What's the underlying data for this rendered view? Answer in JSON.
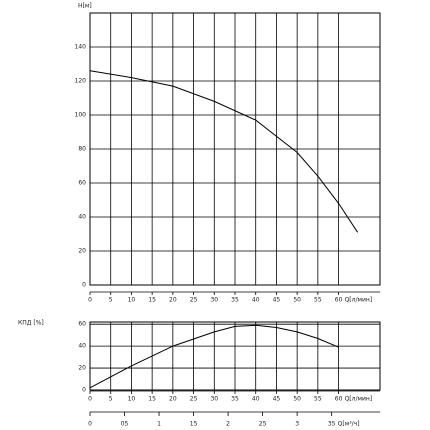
{
  "chart_data": [
    {
      "type": "line",
      "ylabel": "H[м]",
      "xlabel": "Q[л/мин]",
      "x": [
        0,
        10,
        20,
        30,
        40,
        50,
        55,
        60,
        64.6
      ],
      "values": [
        126,
        122,
        117,
        108,
        97,
        78,
        64,
        48,
        31
      ],
      "color": "#000000",
      "xlim": [
        0,
        70
      ],
      "xticks": [
        0,
        5,
        10,
        15,
        20,
        25,
        30,
        35,
        40,
        45,
        50,
        55,
        60
      ],
      "ylim": [
        0,
        160
      ],
      "yticks": [
        0,
        20,
        40,
        60,
        80,
        100,
        120,
        140
      ],
      "grid": true
    },
    {
      "type": "line",
      "ylabel": "КПД [%]",
      "xlabel": "Q[л/мин]",
      "x2label": "Q[м³/ч]",
      "x": [
        0,
        10,
        20,
        30,
        35,
        40,
        45,
        50,
        55,
        60
      ],
      "values": [
        2,
        22,
        40,
        53,
        58,
        59,
        57,
        53,
        47,
        39
      ],
      "color": "#000000",
      "xlim": [
        0,
        70
      ],
      "xticks": [
        0,
        5,
        10,
        15,
        20,
        25,
        30,
        35,
        40,
        45,
        50,
        55,
        60
      ],
      "x2lim": [
        0,
        4.2
      ],
      "x2ticks": [
        0,
        {
          "value": 0.5,
          "label": "05"
        },
        1,
        {
          "value": 1.5,
          "label": "15"
        },
        2,
        {
          "value": 2.5,
          "label": "25"
        },
        3,
        {
          "value": 3.5,
          "label": "35"
        }
      ],
      "ylim": [
        0,
        62
      ],
      "yticks": [
        0,
        20,
        40,
        60
      ],
      "grid": true
    }
  ]
}
